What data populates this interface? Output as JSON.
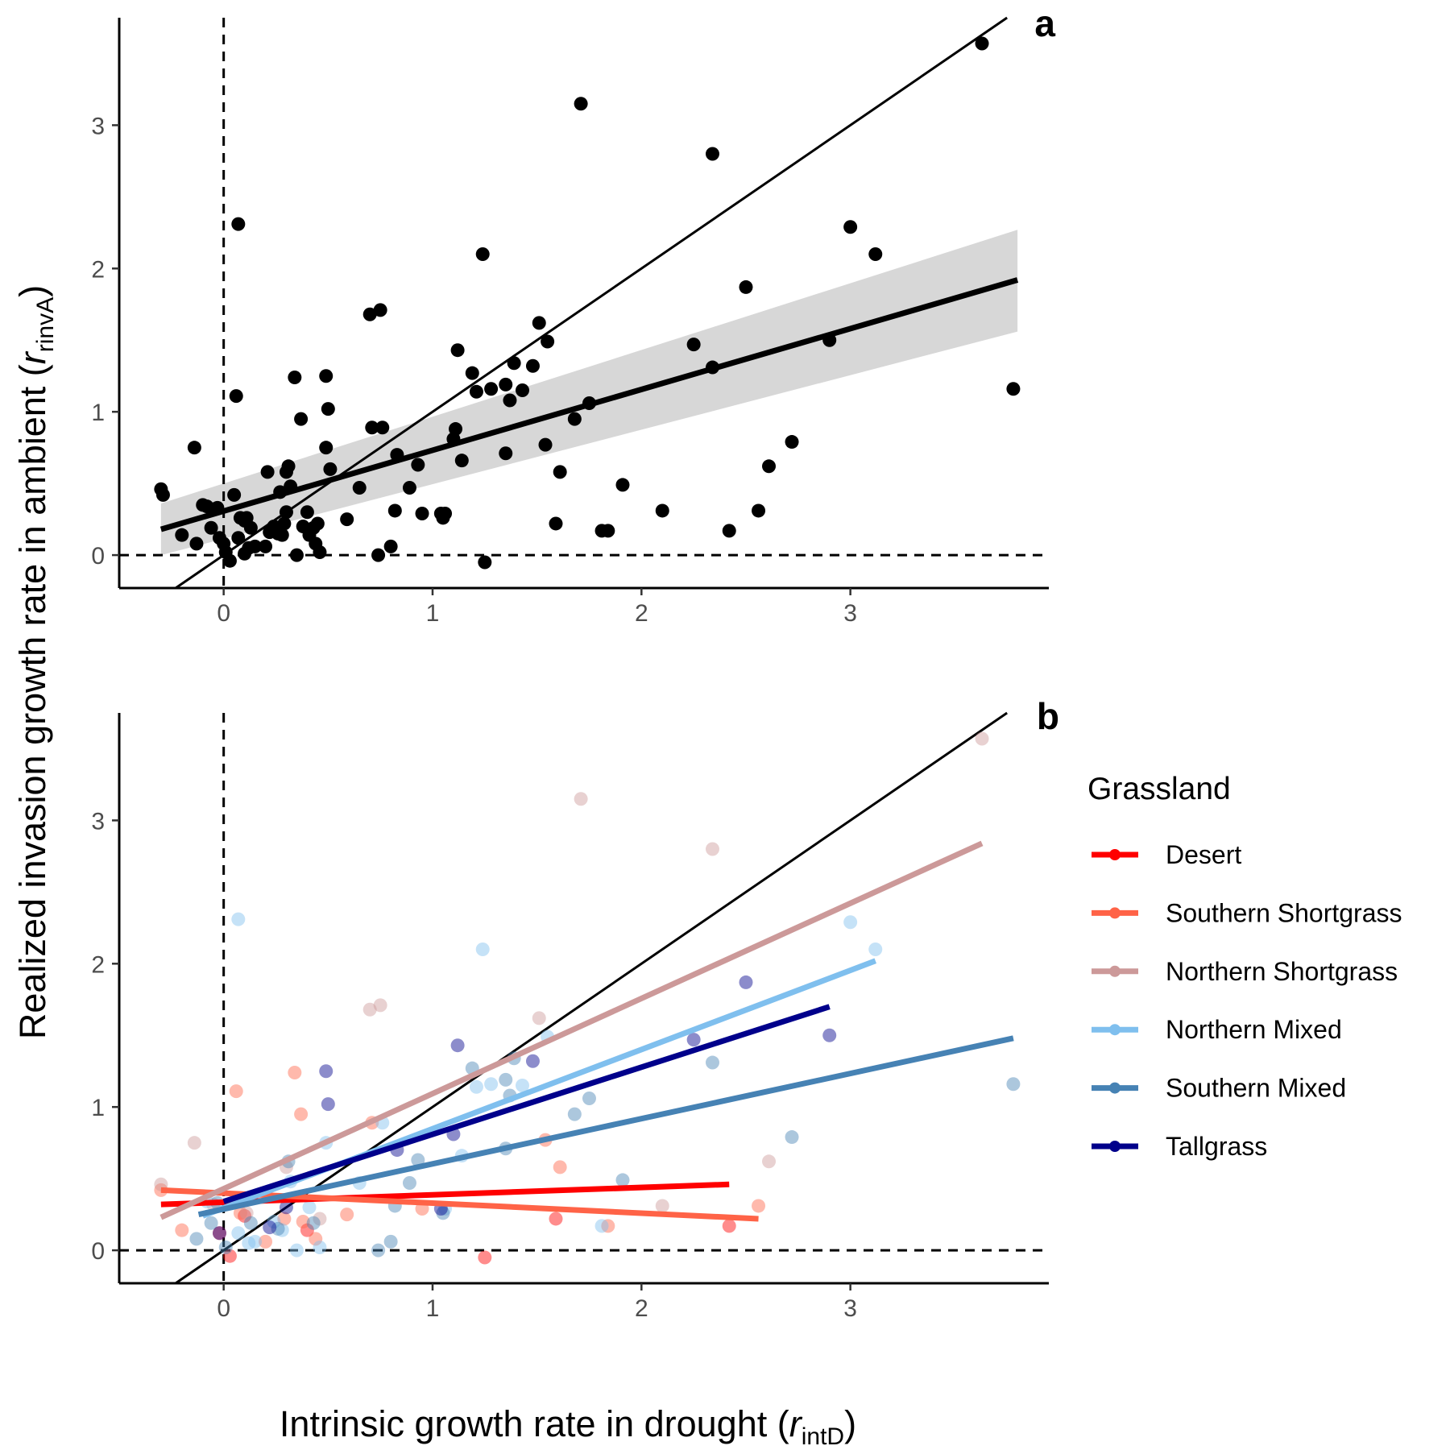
{
  "figure": {
    "ylabel_main": "Realized invasion growth rate in ambient (",
    "ylabel_var": "r",
    "ylabel_sub": "rinvA",
    "ylabel_close": ")",
    "xlabel_main": "Intrinsic growth rate in drought (",
    "xlabel_var": "r",
    "xlabel_sub": "intD",
    "xlabel_close": ")",
    "colors": {
      "points": "#000000",
      "ci_band": "#d3d3d3",
      "fit": "#000000"
    }
  },
  "chart_data": [
    {
      "type": "scatter",
      "panel_label": "a",
      "xlim": [
        -0.5,
        3.95
      ],
      "ylim": [
        -0.23,
        3.75
      ],
      "x_ticks": [
        0,
        1,
        2,
        3
      ],
      "y_ticks": [
        0,
        1,
        2,
        3
      ],
      "reference_lines": [
        "x = 0 (dashed)",
        "y = 0 (dashed)",
        "y = x (1:1 line)"
      ],
      "grid": false,
      "fit": {
        "x": [
          -0.3,
          3.8
        ],
        "y": [
          0.18,
          1.92
        ],
        "ci_lower": [
          0.0,
          1.56
        ],
        "ci_upper": [
          0.36,
          2.27
        ]
      },
      "points": [
        [
          -0.3,
          0.46
        ],
        [
          -0.29,
          0.42
        ],
        [
          -0.2,
          0.14
        ],
        [
          -0.14,
          0.75
        ],
        [
          -0.13,
          0.08
        ],
        [
          -0.1,
          0.35
        ],
        [
          -0.08,
          0.34
        ],
        [
          -0.06,
          0.19
        ],
        [
          -0.05,
          0.32
        ],
        [
          -0.03,
          0.33
        ],
        [
          -0.02,
          0.12
        ],
        [
          0.0,
          0.08
        ],
        [
          0.01,
          0.02
        ],
        [
          0.03,
          -0.04
        ],
        [
          0.05,
          0.42
        ],
        [
          0.06,
          1.11
        ],
        [
          0.07,
          0.12
        ],
        [
          0.07,
          2.31
        ],
        [
          0.08,
          0.26
        ],
        [
          0.1,
          0.24
        ],
        [
          0.1,
          0.01
        ],
        [
          0.11,
          0.26
        ],
        [
          0.12,
          0.05
        ],
        [
          0.13,
          0.19
        ],
        [
          0.15,
          0.06
        ],
        [
          0.2,
          0.06
        ],
        [
          0.21,
          0.58
        ],
        [
          0.22,
          0.16
        ],
        [
          0.24,
          0.2
        ],
        [
          0.26,
          0.15
        ],
        [
          0.27,
          0.44
        ],
        [
          0.28,
          0.14
        ],
        [
          0.29,
          0.22
        ],
        [
          0.3,
          0.58
        ],
        [
          0.3,
          0.3
        ],
        [
          0.31,
          0.62
        ],
        [
          0.32,
          0.48
        ],
        [
          0.34,
          1.24
        ],
        [
          0.35,
          0.0
        ],
        [
          0.37,
          0.95
        ],
        [
          0.38,
          0.2
        ],
        [
          0.4,
          0.3
        ],
        [
          0.41,
          0.14
        ],
        [
          0.43,
          0.19
        ],
        [
          0.44,
          0.08
        ],
        [
          0.45,
          0.22
        ],
        [
          0.46,
          0.02
        ],
        [
          0.49,
          0.75
        ],
        [
          0.49,
          1.25
        ],
        [
          0.5,
          1.02
        ],
        [
          0.51,
          0.6
        ],
        [
          0.59,
          0.25
        ],
        [
          0.65,
          0.47
        ],
        [
          0.7,
          1.68
        ],
        [
          0.71,
          0.89
        ],
        [
          0.74,
          0.0
        ],
        [
          0.75,
          1.71
        ],
        [
          0.76,
          0.89
        ],
        [
          0.8,
          0.06
        ],
        [
          0.82,
          0.31
        ],
        [
          0.83,
          0.7
        ],
        [
          0.89,
          0.47
        ],
        [
          0.93,
          0.63
        ],
        [
          0.95,
          0.29
        ],
        [
          1.04,
          0.29
        ],
        [
          1.05,
          0.26
        ],
        [
          1.06,
          0.29
        ],
        [
          1.1,
          0.81
        ],
        [
          1.11,
          0.88
        ],
        [
          1.12,
          1.43
        ],
        [
          1.14,
          0.66
        ],
        [
          1.19,
          1.27
        ],
        [
          1.21,
          1.14
        ],
        [
          1.24,
          2.1
        ],
        [
          1.25,
          -0.05
        ],
        [
          1.28,
          1.16
        ],
        [
          1.35,
          1.19
        ],
        [
          1.35,
          0.71
        ],
        [
          1.37,
          1.08
        ],
        [
          1.39,
          1.34
        ],
        [
          1.43,
          1.15
        ],
        [
          1.48,
          1.32
        ],
        [
          1.51,
          1.62
        ],
        [
          1.54,
          0.77
        ],
        [
          1.55,
          1.49
        ],
        [
          1.59,
          0.22
        ],
        [
          1.61,
          0.58
        ],
        [
          1.68,
          0.95
        ],
        [
          1.71,
          3.15
        ],
        [
          1.75,
          1.06
        ],
        [
          1.81,
          0.17
        ],
        [
          1.84,
          0.17
        ],
        [
          1.91,
          0.49
        ],
        [
          2.1,
          0.31
        ],
        [
          2.25,
          1.47
        ],
        [
          2.34,
          1.31
        ],
        [
          2.34,
          2.8
        ],
        [
          2.42,
          0.17
        ],
        [
          2.5,
          1.87
        ],
        [
          2.56,
          0.31
        ],
        [
          2.61,
          0.62
        ],
        [
          2.72,
          0.79
        ],
        [
          2.9,
          1.5
        ],
        [
          3.0,
          2.29
        ],
        [
          3.12,
          2.1
        ],
        [
          3.63,
          3.57
        ],
        [
          3.78,
          1.16
        ]
      ]
    },
    {
      "type": "scatter",
      "panel_label": "b",
      "xlim": [
        -0.5,
        3.95
      ],
      "ylim": [
        -0.23,
        3.75
      ],
      "x_ticks": [
        0,
        1,
        2,
        3
      ],
      "y_ticks": [
        0,
        1,
        2,
        3
      ],
      "reference_lines": [
        "x = 0 (dashed)",
        "y = 0 (dashed)",
        "y = x (1:1 line)"
      ],
      "grid": false,
      "legend": {
        "title": "Grassland",
        "position": "right"
      },
      "series": [
        {
          "name": "Desert",
          "color": "#ff0000",
          "fit": {
            "x": [
              -0.3,
              2.42
            ],
            "y": [
              0.32,
              0.46
            ]
          },
          "points": [
            [
              -0.02,
              0.12
            ],
            [
              0.03,
              -0.04
            ],
            [
              0.1,
              0.24
            ],
            [
              0.4,
              0.14
            ],
            [
              1.25,
              -0.05
            ],
            [
              1.59,
              0.22
            ],
            [
              2.42,
              0.17
            ]
          ]
        },
        {
          "name": "Southern Shortgrass",
          "color": "#ff6347",
          "fit": {
            "x": [
              -0.3,
              2.56
            ],
            "y": [
              0.42,
              0.22
            ]
          },
          "points": [
            [
              -0.3,
              0.42
            ],
            [
              -0.2,
              0.14
            ],
            [
              0.06,
              1.11
            ],
            [
              0.08,
              0.26
            ],
            [
              0.2,
              0.06
            ],
            [
              0.29,
              0.22
            ],
            [
              0.34,
              1.24
            ],
            [
              0.37,
              0.95
            ],
            [
              0.38,
              0.2
            ],
            [
              0.44,
              0.08
            ],
            [
              0.59,
              0.25
            ],
            [
              0.71,
              0.89
            ],
            [
              0.95,
              0.29
            ],
            [
              1.54,
              0.77
            ],
            [
              1.61,
              0.58
            ],
            [
              1.84,
              0.17
            ],
            [
              2.56,
              0.31
            ]
          ]
        },
        {
          "name": "Northern Shortgrass",
          "color": "#cc9999",
          "fit": {
            "x": [
              -0.3,
              3.63
            ],
            "y": [
              0.23,
              2.84
            ]
          },
          "points": [
            [
              -0.3,
              0.46
            ],
            [
              -0.14,
              0.75
            ],
            [
              -0.05,
              0.32
            ],
            [
              0.11,
              0.26
            ],
            [
              0.3,
              0.58
            ],
            [
              0.46,
              0.22
            ],
            [
              0.7,
              1.68
            ],
            [
              0.75,
              1.71
            ],
            [
              1.51,
              1.62
            ],
            [
              1.71,
              3.15
            ],
            [
              2.1,
              0.31
            ],
            [
              2.34,
              2.8
            ],
            [
              2.61,
              0.62
            ],
            [
              3.63,
              3.57
            ]
          ]
        },
        {
          "name": "Northern Mixed",
          "color": "#7fbfee",
          "fit": {
            "x": [
              -0.1,
              3.12
            ],
            "y": [
              0.24,
              2.02
            ]
          },
          "points": [
            [
              -0.08,
              0.34
            ],
            [
              0.07,
              2.31
            ],
            [
              0.07,
              0.12
            ],
            [
              0.12,
              0.05
            ],
            [
              0.15,
              0.06
            ],
            [
              0.24,
              0.2
            ],
            [
              0.28,
              0.14
            ],
            [
              0.32,
              0.48
            ],
            [
              0.35,
              0.0
            ],
            [
              0.41,
              0.3
            ],
            [
              0.46,
              0.02
            ],
            [
              0.49,
              0.75
            ],
            [
              0.65,
              0.47
            ],
            [
              0.76,
              0.89
            ],
            [
              1.06,
              0.29
            ],
            [
              1.14,
              0.66
            ],
            [
              1.21,
              1.14
            ],
            [
              1.24,
              2.1
            ],
            [
              1.28,
              1.16
            ],
            [
              1.43,
              1.15
            ],
            [
              1.55,
              1.49
            ],
            [
              1.81,
              0.17
            ],
            [
              3.0,
              2.29
            ],
            [
              3.12,
              2.1
            ]
          ]
        },
        {
          "name": "Southern Mixed",
          "color": "#4682b4",
          "fit": {
            "x": [
              -0.12,
              3.78
            ],
            "y": [
              0.25,
              1.48
            ]
          },
          "points": [
            [
              -0.13,
              0.08
            ],
            [
              -0.06,
              0.19
            ],
            [
              -0.03,
              0.33
            ],
            [
              0.01,
              0.02
            ],
            [
              0.13,
              0.19
            ],
            [
              0.26,
              0.15
            ],
            [
              0.31,
              0.62
            ],
            [
              0.43,
              0.19
            ],
            [
              0.74,
              0.0
            ],
            [
              0.8,
              0.06
            ],
            [
              0.82,
              0.31
            ],
            [
              0.89,
              0.47
            ],
            [
              0.93,
              0.63
            ],
            [
              1.05,
              0.26
            ],
            [
              1.19,
              1.27
            ],
            [
              1.35,
              1.19
            ],
            [
              1.35,
              0.71
            ],
            [
              1.37,
              1.08
            ],
            [
              1.39,
              1.34
            ],
            [
              1.68,
              0.95
            ],
            [
              1.75,
              1.06
            ],
            [
              1.91,
              0.49
            ],
            [
              2.34,
              1.31
            ],
            [
              2.72,
              0.79
            ],
            [
              3.78,
              1.16
            ]
          ]
        },
        {
          "name": "Tallgrass",
          "color": "#00008b",
          "fit": {
            "x": [
              0.0,
              2.9
            ],
            "y": [
              0.34,
              1.7
            ]
          },
          "points": [
            [
              -0.02,
              0.12
            ],
            [
              0.22,
              0.16
            ],
            [
              0.3,
              0.3
            ],
            [
              0.49,
              1.25
            ],
            [
              0.5,
              1.02
            ],
            [
              0.83,
              0.7
            ],
            [
              1.04,
              0.29
            ],
            [
              1.1,
              0.81
            ],
            [
              1.12,
              1.43
            ],
            [
              1.48,
              1.32
            ],
            [
              2.25,
              1.47
            ],
            [
              2.5,
              1.87
            ],
            [
              2.9,
              1.5
            ]
          ]
        }
      ]
    }
  ]
}
